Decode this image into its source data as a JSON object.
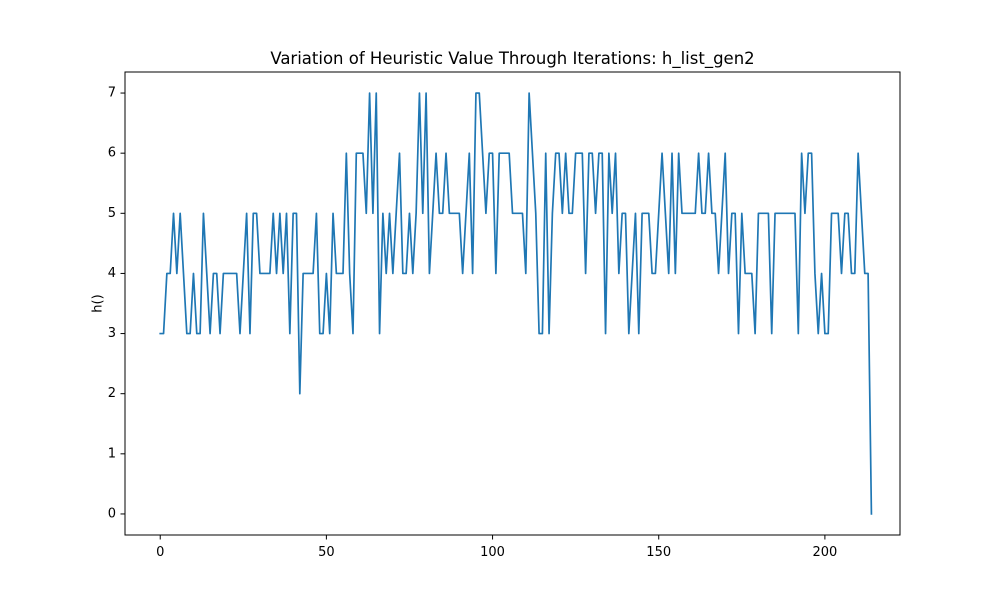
{
  "colors": {
    "line": "#1f77b4",
    "axes": "#000000",
    "background": "#ffffff"
  },
  "chart_data": {
    "type": "line",
    "title": "Variation of Heuristic Value Through Iterations: h_list_gen2",
    "xlabel": "",
    "ylabel": "h()",
    "xlim": [
      -10.6,
      222.6
    ],
    "ylim": [
      -0.35,
      7.35
    ],
    "xticks": [
      0,
      50,
      100,
      150,
      200
    ],
    "yticks": [
      0,
      1,
      2,
      3,
      4,
      5,
      6,
      7
    ],
    "grid": false,
    "legend": "none",
    "series": [
      {
        "values": [
          3,
          3,
          4,
          4,
          5,
          4,
          5,
          4,
          3,
          3,
          4,
          3,
          3,
          5,
          4,
          3,
          4,
          4,
          3,
          4,
          4,
          4,
          4,
          4,
          3,
          4,
          5,
          3,
          5,
          5,
          4,
          4,
          4,
          4,
          5,
          4,
          5,
          4,
          5,
          3,
          5,
          5,
          2,
          4,
          4,
          4,
          4,
          5,
          3,
          3,
          4,
          3,
          5,
          4,
          4,
          4,
          6,
          4,
          3,
          6,
          6,
          6,
          5,
          7,
          5,
          7,
          3,
          5,
          4,
          5,
          4,
          5,
          6,
          4,
          4,
          5,
          4,
          5,
          7,
          5,
          7,
          4,
          5,
          6,
          5,
          5,
          6,
          5,
          5,
          5,
          5,
          4,
          5,
          6,
          4,
          7,
          7,
          6,
          5,
          6,
          6,
          4,
          6,
          6,
          6,
          6,
          5,
          5,
          5,
          5,
          4,
          7,
          6,
          5,
          3,
          3,
          6,
          3,
          5,
          6,
          6,
          5,
          6,
          5,
          5,
          6,
          6,
          6,
          4,
          6,
          6,
          5,
          6,
          6,
          3,
          6,
          5,
          6,
          4,
          5,
          5,
          3,
          4,
          5,
          3,
          5,
          5,
          5,
          4,
          4,
          5,
          6,
          5,
          4,
          6,
          4,
          6,
          5,
          5,
          5,
          5,
          5,
          6,
          5,
          5,
          6,
          5,
          5,
          4,
          5,
          6,
          4,
          5,
          5,
          3,
          5,
          4,
          4,
          4,
          3,
          5,
          5,
          5,
          5,
          3,
          5,
          5,
          5,
          5,
          5,
          5,
          5,
          3,
          6,
          5,
          6,
          6,
          4,
          3,
          4,
          3,
          3,
          5,
          5,
          5,
          4,
          5,
          5,
          4,
          4,
          6,
          5,
          4,
          4,
          0
        ]
      }
    ]
  }
}
